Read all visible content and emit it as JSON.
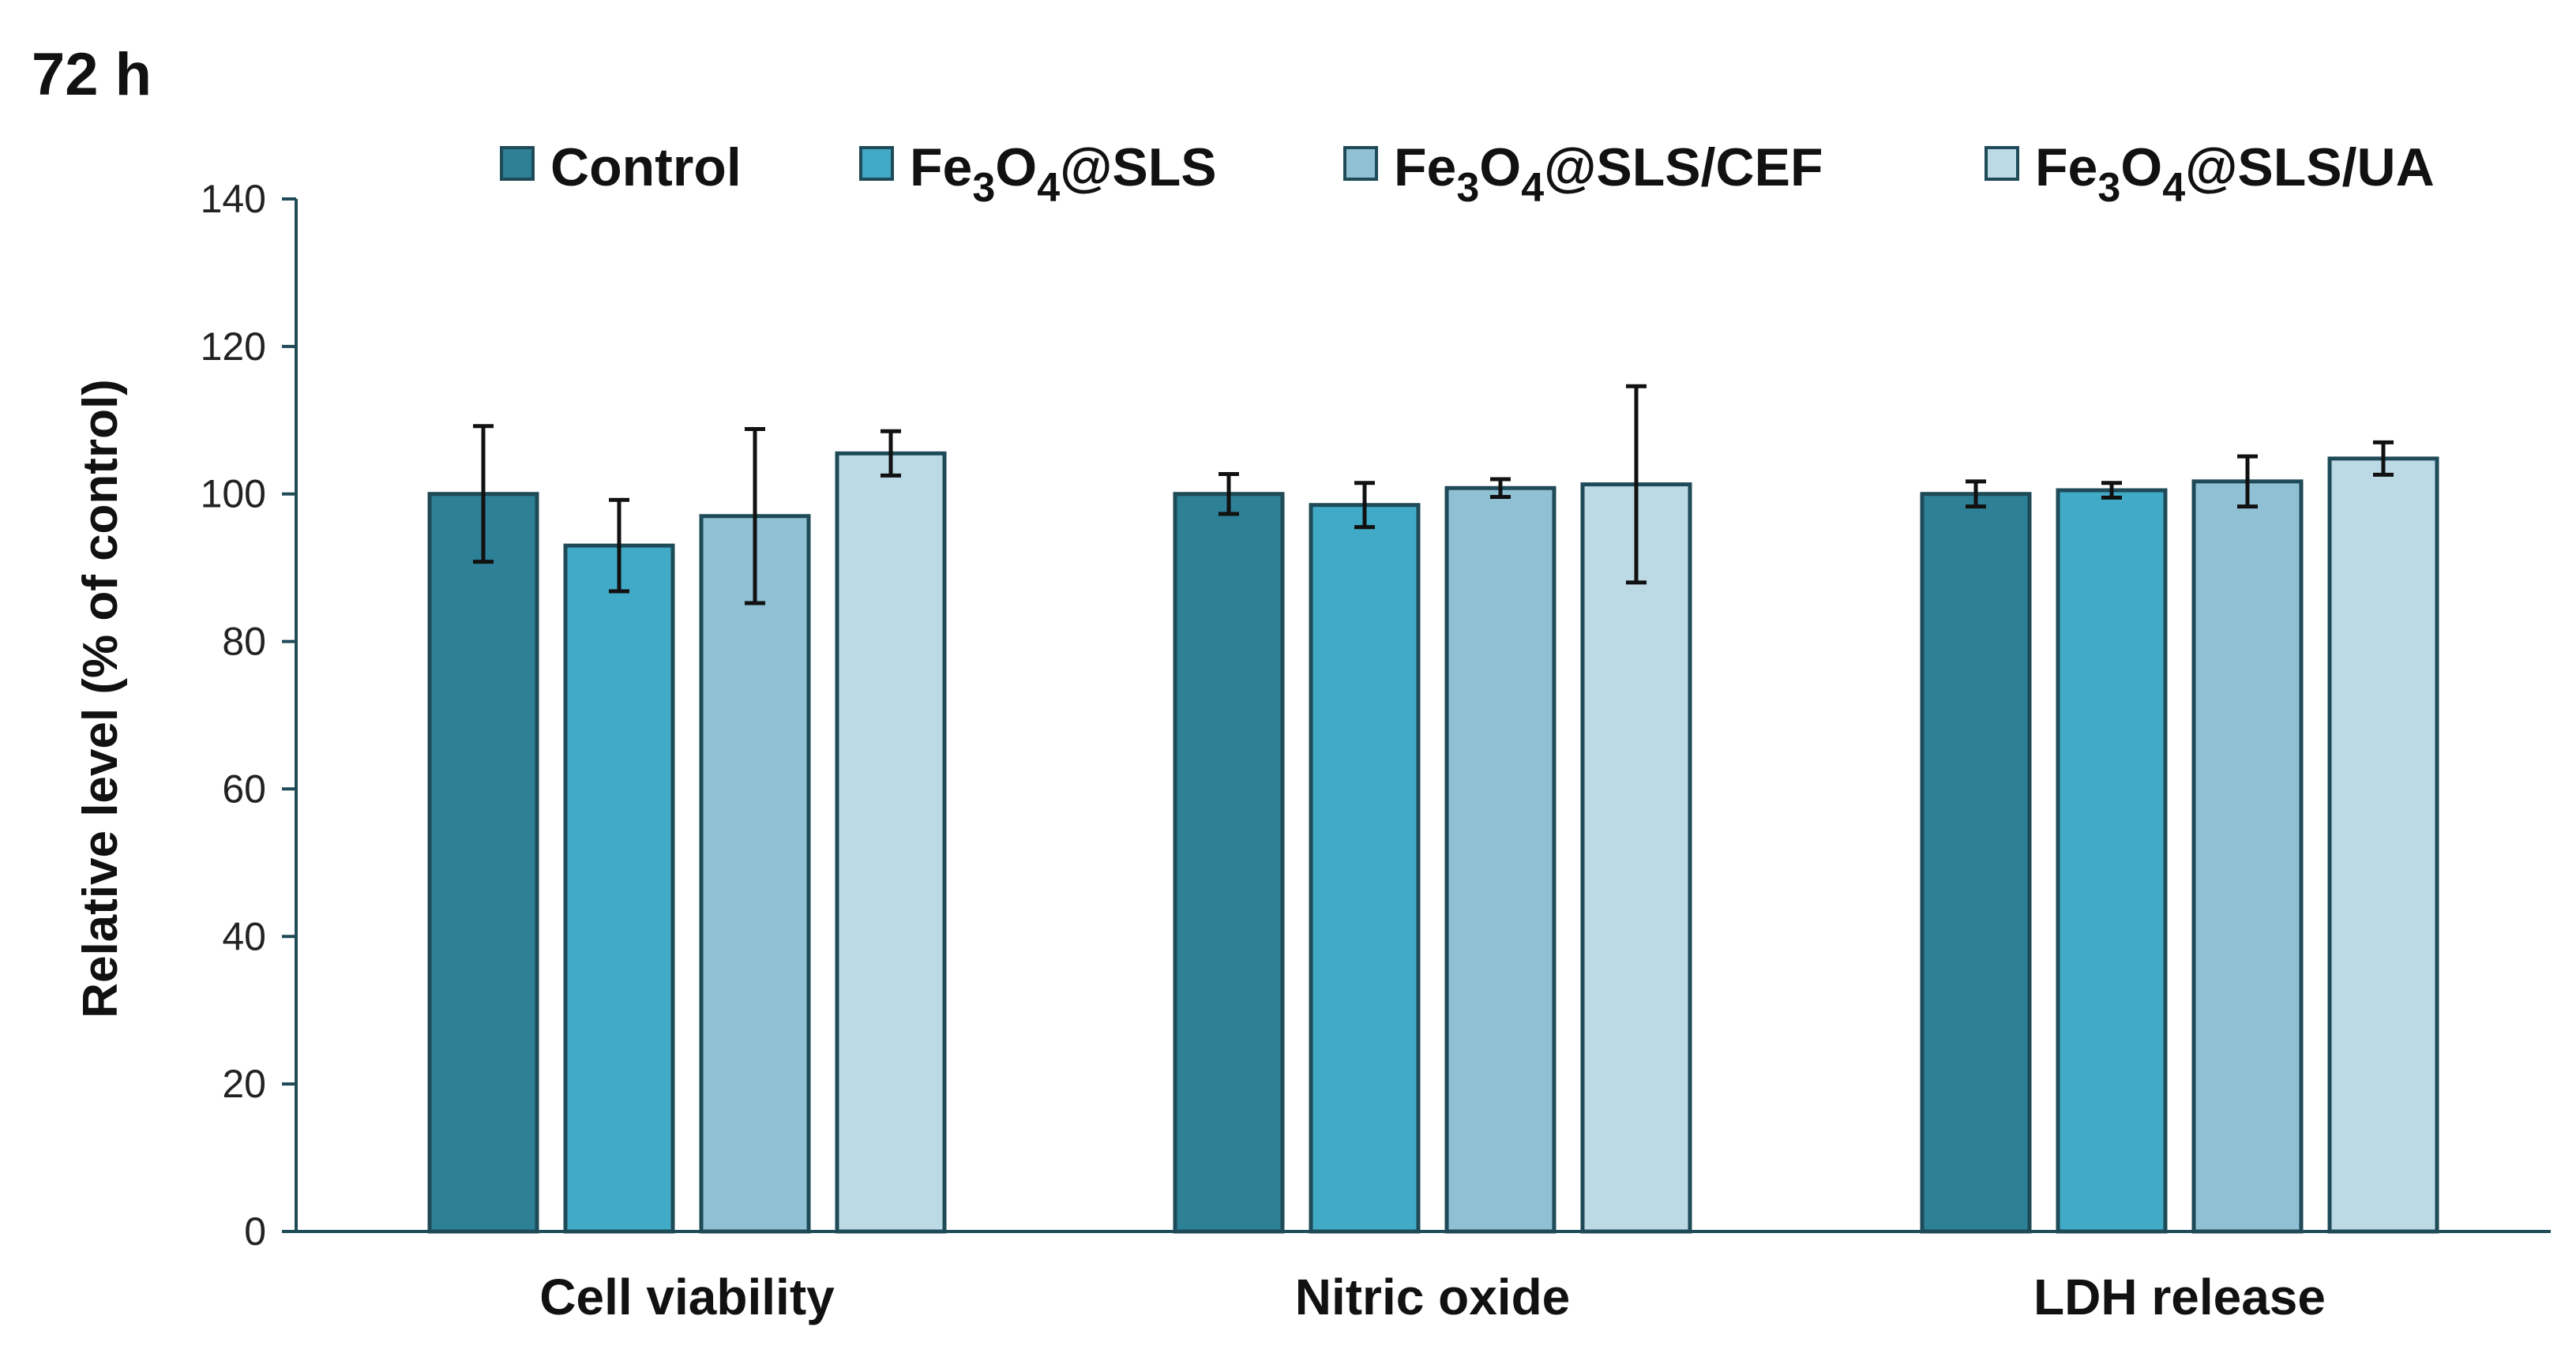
{
  "chart_data": {
    "type": "bar",
    "title": "72 h",
    "ylabel": "Relative level (% of control)",
    "xlabel": "",
    "ylim": [
      0,
      140
    ],
    "yticks": [
      0,
      20,
      40,
      60,
      80,
      100,
      120,
      140
    ],
    "categories": [
      "Cell viability",
      "Nitric oxide",
      "LDH release"
    ],
    "legend_position": "top",
    "series": [
      {
        "name": "Control",
        "name_parts": [
          "Control"
        ],
        "color": "#2e8096",
        "values": [
          100,
          100,
          100
        ],
        "errors": [
          9.2,
          2.7,
          1.7
        ]
      },
      {
        "name": "Fe3O4@SLS",
        "name_parts": [
          "Fe",
          "3",
          "O",
          "4",
          "@SLS"
        ],
        "color": "#41abc7",
        "values": [
          93,
          98.5,
          100.5
        ],
        "errors": [
          6.2,
          3.0,
          1.0
        ]
      },
      {
        "name": "Fe3O4@SLS/CEF",
        "name_parts": [
          "Fe",
          "3",
          "O",
          "4",
          "@SLS/CEF"
        ],
        "color": "#8fc0d4",
        "values": [
          97,
          100.8,
          101.7
        ],
        "errors": [
          11.8,
          1.2,
          3.4
        ]
      },
      {
        "name": "Fe3O4@SLS/UA",
        "name_parts": [
          "Fe",
          "3",
          "O",
          "4",
          "@SLS/UA"
        ],
        "color": "#bcdae6",
        "values": [
          105.5,
          101.3,
          104.8
        ],
        "errors": [
          3.0,
          13.3,
          2.2
        ]
      }
    ]
  }
}
